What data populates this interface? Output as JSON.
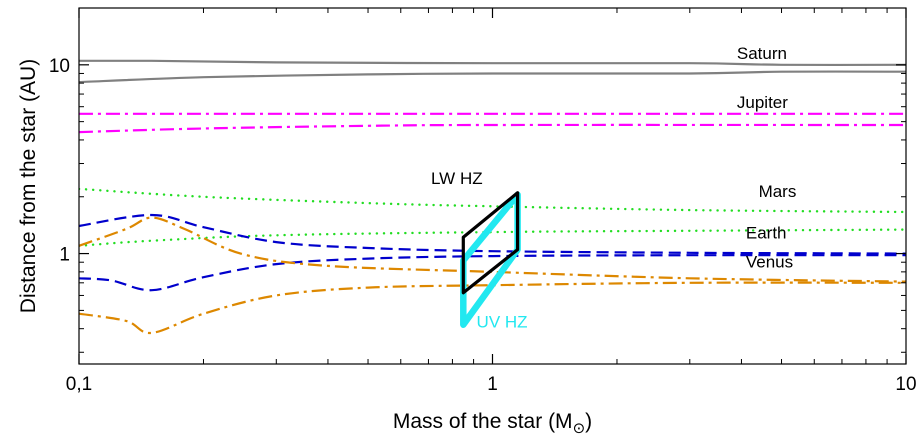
{
  "chart_data": {
    "type": "line",
    "xlabel": "Mass of the star (M",
    "xlabel_symbol": "⊙",
    "xlabel_close": ")",
    "ylabel": "Distance from the star (AU)",
    "x_scale": "log",
    "y_scale": "log",
    "xlim": [
      0.1,
      10
    ],
    "ylim": [
      0.26,
      20
    ],
    "x_ticks": [
      {
        "value": 0.1,
        "label": "0,1"
      },
      {
        "value": 1,
        "label": "1"
      },
      {
        "value": 10,
        "label": "10"
      }
    ],
    "y_ticks": [
      {
        "value": 1,
        "label": "1"
      },
      {
        "value": 10,
        "label": "10"
      }
    ],
    "grid": false,
    "series": [
      {
        "name": "Saturn",
        "role": "upper",
        "color": "#808080",
        "style": "solid",
        "points": [
          [
            0.1,
            10.5
          ],
          [
            0.15,
            10.5
          ],
          [
            0.3,
            10.3
          ],
          [
            1,
            10.2
          ],
          [
            3,
            10.2
          ],
          [
            5,
            10.0
          ],
          [
            10,
            10.0
          ]
        ]
      },
      {
        "name": "Saturn",
        "role": "lower",
        "color": "#808080",
        "style": "solid",
        "points": [
          [
            0.1,
            8.1
          ],
          [
            0.2,
            8.6
          ],
          [
            0.5,
            8.9
          ],
          [
            1,
            9.0
          ],
          [
            3,
            9.0
          ],
          [
            5,
            9.2
          ],
          [
            10,
            9.2
          ]
        ]
      },
      {
        "name": "Jupiter",
        "role": "upper",
        "color": "#ff00ff",
        "style": "dashdot",
        "points": [
          [
            0.1,
            5.5
          ],
          [
            1,
            5.5
          ],
          [
            10,
            5.5
          ]
        ]
      },
      {
        "name": "Jupiter",
        "role": "lower",
        "color": "#ff00ff",
        "style": "dashdot",
        "points": [
          [
            0.1,
            4.4
          ],
          [
            0.2,
            4.6
          ],
          [
            0.5,
            4.75
          ],
          [
            1,
            4.8
          ],
          [
            10,
            4.8
          ]
        ]
      },
      {
        "name": "Mars",
        "role": "upper",
        "color": "#22dd22",
        "style": "dotted",
        "points": [
          [
            0.1,
            2.2
          ],
          [
            0.2,
            2.0
          ],
          [
            0.5,
            1.85
          ],
          [
            1,
            1.78
          ],
          [
            3,
            1.7
          ],
          [
            10,
            1.66
          ]
        ]
      },
      {
        "name": "Mars",
        "role": "lower",
        "color": "#22dd22",
        "style": "dotted",
        "points": [
          [
            0.1,
            1.1
          ],
          [
            0.15,
            1.17
          ],
          [
            0.3,
            1.25
          ],
          [
            1,
            1.3
          ],
          [
            3,
            1.32
          ],
          [
            10,
            1.34
          ]
        ]
      },
      {
        "name": "Earth",
        "role": "upper",
        "color": "#0000cc",
        "style": "dashed",
        "points": [
          [
            0.1,
            1.4
          ],
          [
            0.15,
            1.6
          ],
          [
            0.2,
            1.38
          ],
          [
            0.3,
            1.15
          ],
          [
            0.5,
            1.07
          ],
          [
            1,
            1.03
          ],
          [
            3,
            1.01
          ],
          [
            10,
            1.0
          ]
        ]
      },
      {
        "name": "Earth",
        "role": "lower",
        "color": "#0000cc",
        "style": "dashed",
        "points": [
          [
            0.1,
            0.74
          ],
          [
            0.12,
            0.72
          ],
          [
            0.15,
            0.64
          ],
          [
            0.2,
            0.75
          ],
          [
            0.3,
            0.88
          ],
          [
            0.5,
            0.94
          ],
          [
            1,
            0.97
          ],
          [
            3,
            0.98
          ],
          [
            10,
            0.98
          ]
        ]
      },
      {
        "name": "Venus",
        "role": "upper",
        "color": "#dd8800",
        "style": "dashdot",
        "points": [
          [
            0.1,
            1.1
          ],
          [
            0.13,
            1.35
          ],
          [
            0.15,
            1.55
          ],
          [
            0.18,
            1.35
          ],
          [
            0.25,
            0.99
          ],
          [
            0.4,
            0.86
          ],
          [
            1,
            0.8
          ],
          [
            3,
            0.74
          ],
          [
            10,
            0.71
          ]
        ]
      },
      {
        "name": "Venus",
        "role": "lower",
        "color": "#dd8800",
        "style": "dashdot",
        "points": [
          [
            0.1,
            0.48
          ],
          [
            0.13,
            0.44
          ],
          [
            0.15,
            0.38
          ],
          [
            0.2,
            0.48
          ],
          [
            0.3,
            0.6
          ],
          [
            0.5,
            0.66
          ],
          [
            1,
            0.68
          ],
          [
            3,
            0.7
          ],
          [
            10,
            0.7
          ]
        ]
      }
    ],
    "zones": [
      {
        "name": "LW HZ",
        "color": "#000000",
        "points": [
          [
            0.85,
            1.22
          ],
          [
            1.15,
            2.1
          ],
          [
            1.15,
            1.05
          ],
          [
            0.85,
            0.62
          ]
        ]
      },
      {
        "name": "UV HZ",
        "color": "#22e8f0",
        "points": [
          [
            0.85,
            0.92
          ],
          [
            1.15,
            2.05
          ],
          [
            1.15,
            1.05
          ],
          [
            0.85,
            0.42
          ]
        ]
      }
    ]
  }
}
